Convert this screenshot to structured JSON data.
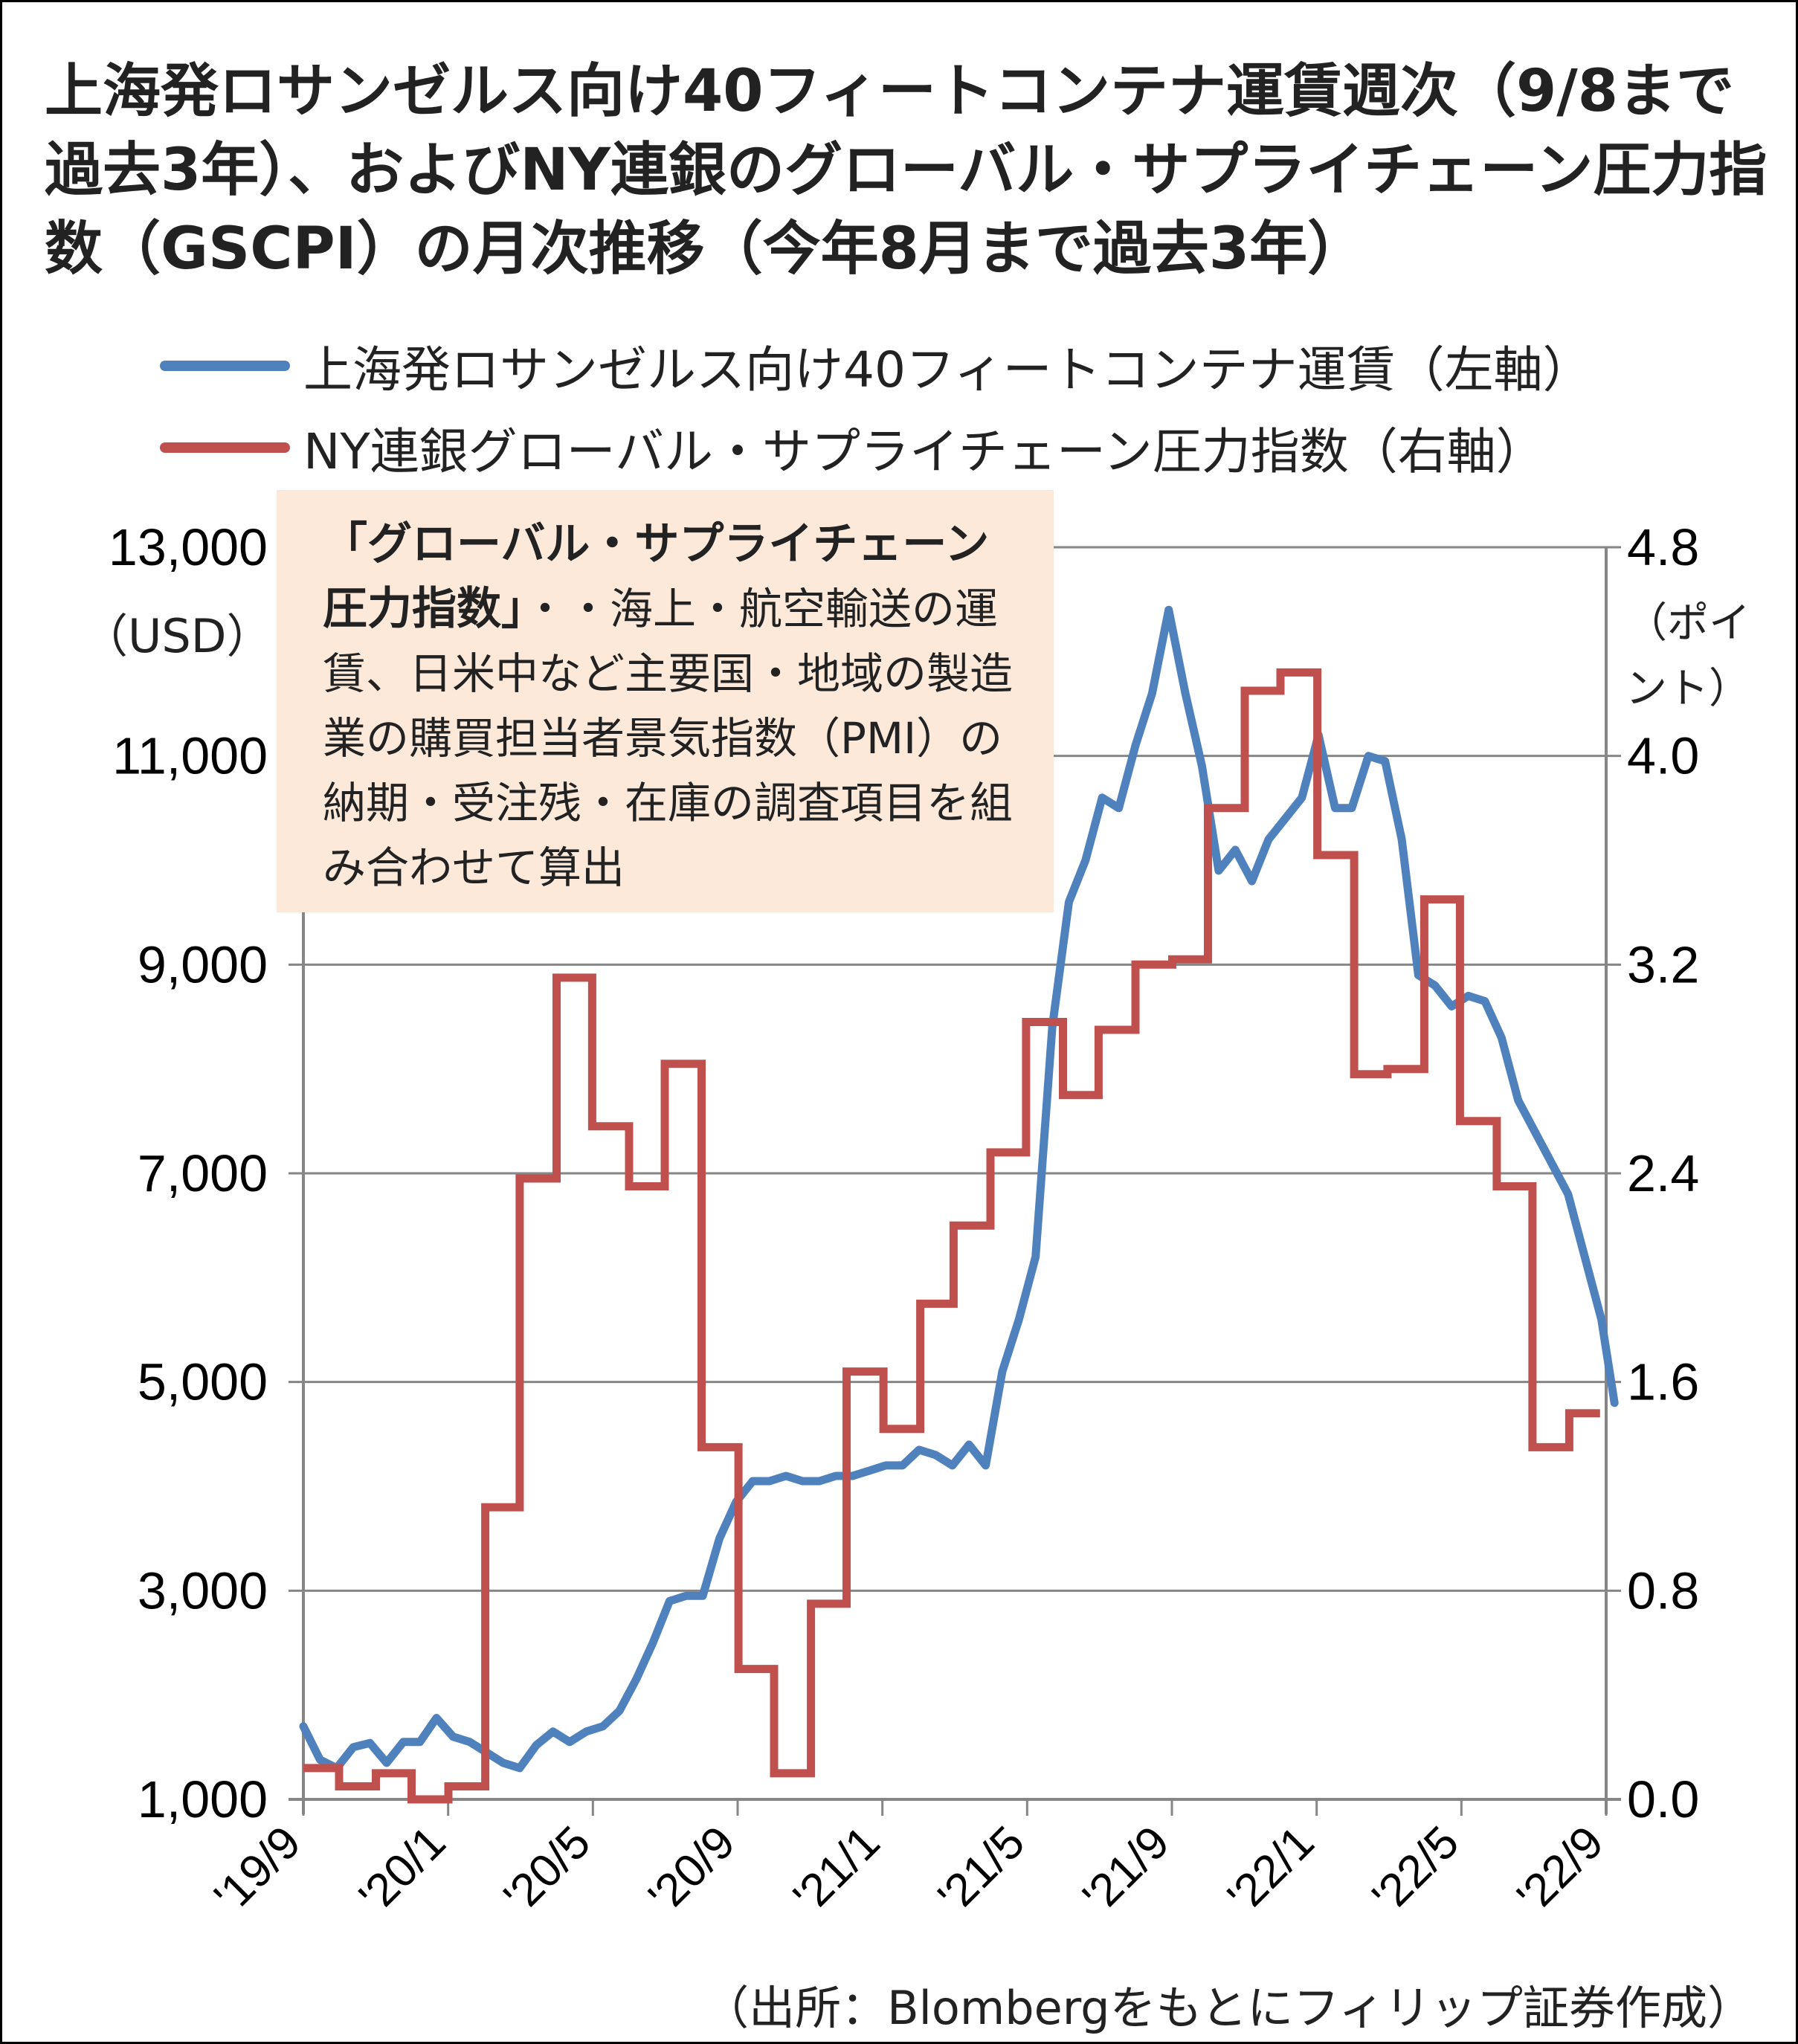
{
  "title": "上海発ロサンゼルス向け40フィートコンテナ運賃週次（9/8まで過去3年）、およびNY連銀のグローバル・サプライチェーン圧力指数（GSCPI）の月次推移（今年8月まで過去3年）",
  "note": {
    "heading": "「グローバル・サプライチェーン圧力指数」",
    "body": "・・海上・航空輸送の運賃、日米中など主要国・地域の製造業の購買担当者景気指数（PMI）の納期・受注残・在庫の調査項目を組み合わせて算出"
  },
  "source": "（出所：Blombergをもとにフィリップ証券作成）",
  "colors": {
    "blue": "#4f81bd",
    "red": "#c0504d",
    "grid": "#868686",
    "note_bg": "#fde9d9"
  },
  "chart_data": {
    "type": "line",
    "left_axis": {
      "unit": "（USD）",
      "ticks": [
        "1,000",
        "3,000",
        "5,000",
        "7,000",
        "9,000",
        "11,000",
        "13,000"
      ],
      "min": 1000,
      "max": 13000
    },
    "right_axis": {
      "unit": "（ポイント）",
      "ticks": [
        "0.0",
        "0.8",
        "1.6",
        "2.4",
        "3.2",
        "4.0",
        "4.8"
      ],
      "min": 0,
      "max": 4.8
    },
    "x_labels": [
      "'19/9",
      "'20/1",
      "'20/5",
      "'20/9",
      "'21/1",
      "'21/5",
      "'21/9",
      "'22/1",
      "'22/5",
      "'22/9"
    ],
    "x_range": [
      "2019-09",
      "2022-09"
    ],
    "grid": "horizontal",
    "legend": "top",
    "series": [
      {
        "name": "上海発ロサンゼルス向け40フィートコンテナ運賃（左軸）",
        "axis": "left",
        "color": "#4f81bd",
        "dates": [
          "2019-09-01",
          "2019-09-15",
          "2019-09-29",
          "2019-10-13",
          "2019-10-27",
          "2019-11-10",
          "2019-11-24",
          "2019-12-08",
          "2019-12-22",
          "2020-01-05",
          "2020-01-19",
          "2020-02-02",
          "2020-02-16",
          "2020-03-01",
          "2020-03-15",
          "2020-03-29",
          "2020-04-12",
          "2020-04-26",
          "2020-05-10",
          "2020-05-24",
          "2020-06-07",
          "2020-06-21",
          "2020-07-05",
          "2020-07-19",
          "2020-08-02",
          "2020-08-16",
          "2020-08-30",
          "2020-09-13",
          "2020-09-27",
          "2020-10-11",
          "2020-10-25",
          "2020-11-08",
          "2020-11-22",
          "2020-12-06",
          "2020-12-20",
          "2021-01-03",
          "2021-01-17",
          "2021-01-31",
          "2021-02-14",
          "2021-02-28",
          "2021-03-14",
          "2021-03-28",
          "2021-04-11",
          "2021-04-25",
          "2021-05-09",
          "2021-05-23",
          "2021-06-06",
          "2021-06-20",
          "2021-07-04",
          "2021-07-18",
          "2021-08-01",
          "2021-08-15",
          "2021-08-29",
          "2021-09-12",
          "2021-09-26",
          "2021-10-10",
          "2021-10-24",
          "2021-11-07",
          "2021-11-21",
          "2021-12-05",
          "2021-12-19",
          "2022-01-02",
          "2022-01-16",
          "2022-01-30",
          "2022-02-13",
          "2022-02-27",
          "2022-03-13",
          "2022-03-27",
          "2022-04-10",
          "2022-04-24",
          "2022-05-08",
          "2022-05-22",
          "2022-06-05",
          "2022-06-19",
          "2022-07-03",
          "2022-07-17",
          "2022-07-31",
          "2022-08-14",
          "2022-08-28",
          "2022-09-08"
        ],
        "values": [
          1700,
          1380,
          1300,
          1500,
          1540,
          1350,
          1550,
          1550,
          1780,
          1600,
          1550,
          1450,
          1350,
          1300,
          1520,
          1650,
          1550,
          1650,
          1700,
          1850,
          2150,
          2500,
          2900,
          2950,
          2950,
          3500,
          3850,
          4050,
          4050,
          4100,
          4050,
          4050,
          4100,
          4100,
          4150,
          4200,
          4200,
          4350,
          4300,
          4200,
          4400,
          4200,
          5100,
          5600,
          6200,
          8400,
          9600,
          10000,
          10600,
          10500,
          11100,
          11600,
          12400,
          11600,
          10900,
          9900,
          10100,
          9800,
          10200,
          10400,
          10600,
          11200,
          10500,
          10500,
          11000,
          10950,
          10200,
          8900,
          8800,
          8600,
          8700,
          8650,
          8300,
          7700,
          7400,
          7100,
          6800,
          6200,
          5600,
          4800
        ]
      },
      {
        "name": "NY連銀グローバル・サプライチェーン圧力指数（右軸）",
        "axis": "right",
        "color": "#c0504d",
        "dates": [
          "2019-09",
          "2019-10",
          "2019-11",
          "2019-12",
          "2020-01",
          "2020-02",
          "2020-03",
          "2020-04",
          "2020-05",
          "2020-06",
          "2020-07",
          "2020-08",
          "2020-09",
          "2020-10",
          "2020-11",
          "2020-12",
          "2021-01",
          "2021-02",
          "2021-03",
          "2021-04",
          "2021-05",
          "2021-06",
          "2021-07",
          "2021-08",
          "2021-09",
          "2021-10",
          "2021-11",
          "2021-12",
          "2022-01",
          "2022-02",
          "2022-03",
          "2022-04",
          "2022-05",
          "2022-06",
          "2022-07",
          "2022-08"
        ],
        "values": [
          0.12,
          0.05,
          0.1,
          0.0,
          0.05,
          1.12,
          2.38,
          3.15,
          2.58,
          2.35,
          2.82,
          1.35,
          0.5,
          0.1,
          0.75,
          1.64,
          1.42,
          1.9,
          2.2,
          2.48,
          2.98,
          2.7,
          2.95,
          3.2,
          3.22,
          3.8,
          4.25,
          4.32,
          3.62,
          2.78,
          2.8,
          3.45,
          2.6,
          2.35,
          1.35,
          1.48
        ]
      }
    ]
  }
}
